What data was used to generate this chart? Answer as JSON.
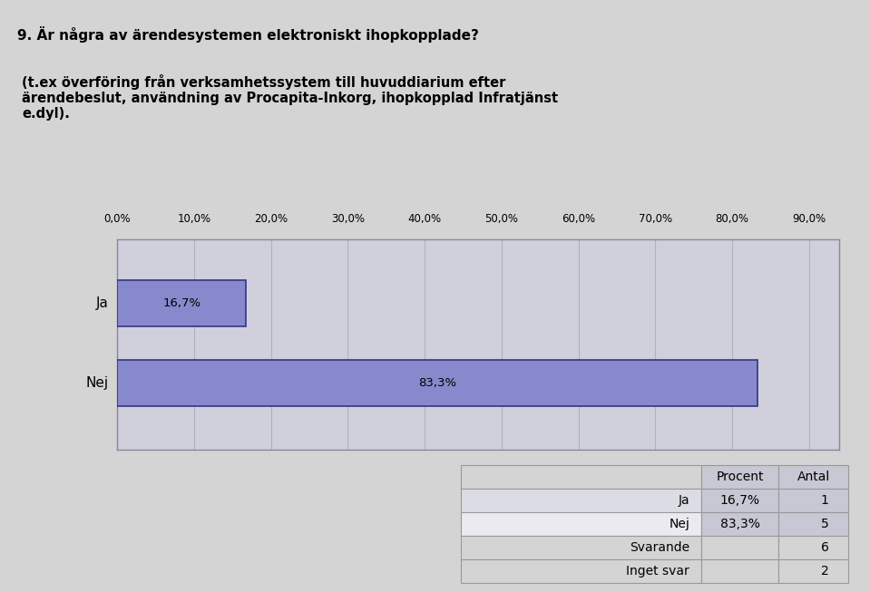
{
  "title_line1": "9. Är några av ärendesystemen elektroniskt ihopkopplade?",
  "title_line2": "(t.ex överföring från verksamhetssystem till huvuddiarium efter\närendebeslut, användning av Procapita-Inkorg, ihopkopplad Infratjänst\ne.dyl).",
  "categories": [
    "Ja",
    "Nej"
  ],
  "values": [
    16.7,
    83.3
  ],
  "bar_color": "#8888cc",
  "bar_edge_color": "#333388",
  "chart_bg_color": "#d0d0dc",
  "page_bg_color": "#d4d4d4",
  "x_ticks": [
    0.0,
    10.0,
    20.0,
    30.0,
    40.0,
    50.0,
    60.0,
    70.0,
    80.0,
    90.0
  ],
  "x_tick_labels": [
    "0,0%",
    "10,0%",
    "20,0%",
    "30,0%",
    "40,0%",
    "50,0%",
    "60,0%",
    "70,0%",
    "80,0%",
    "90,0%"
  ],
  "xlim": [
    0,
    94
  ],
  "bar_labels": [
    "16,7%",
    "83,3%"
  ],
  "table_rows": [
    [
      "Ja",
      "16,7%",
      "1"
    ],
    [
      "Nej",
      "83,3%",
      "5"
    ],
    [
      "Svarande",
      "",
      "6"
    ],
    [
      "Inget svar",
      "",
      "2"
    ]
  ],
  "table_headers": [
    "",
    "Procent",
    "Antal"
  ],
  "table_header_bg": "#c8c8d4",
  "table_row_bg1": "#dcdce4",
  "table_row_bg2": "#eaeaf0",
  "table_row_bg3": "#eaeaf0",
  "table_row_bg4": "#dcdce4"
}
